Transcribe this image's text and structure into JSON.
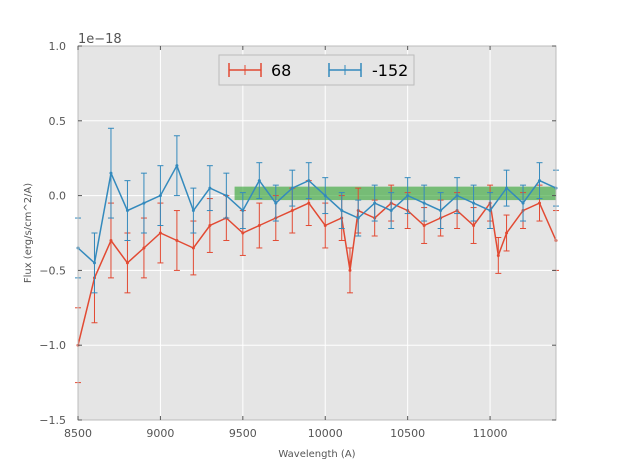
{
  "chart_data": {
    "type": "line",
    "xlabel": "Wavelength (A)",
    "ylabel": "Flux (erg/s/cm^2/A)",
    "offset_text": "1e−18",
    "xlim": [
      8500,
      11400
    ],
    "ylim": [
      -1.5,
      1.0
    ],
    "xticks": [
      8500,
      9000,
      9500,
      10000,
      10500,
      11000
    ],
    "yticks": [
      -1.5,
      -1.0,
      -0.5,
      0.0,
      0.5,
      1.0
    ],
    "ytick_labels": [
      "−1.5",
      "−1.0",
      "−0.5",
      "0.0",
      "0.5",
      "1.0"
    ],
    "grid": true,
    "legend_position": "top-center",
    "band": {
      "x_start": 9450,
      "x_end": 11400,
      "y_low": -0.03,
      "y_high": 0.06,
      "color": "#2ca02c"
    },
    "series": [
      {
        "name": "68",
        "color": "#e24a33",
        "x": [
          8500,
          8600,
          8700,
          8800,
          8900,
          9000,
          9100,
          9200,
          9300,
          9400,
          9500,
          9600,
          9700,
          9800,
          9900,
          10000,
          10100,
          10150,
          10200,
          10300,
          10400,
          10500,
          10600,
          10700,
          10800,
          10900,
          11000,
          11050,
          11100,
          11200,
          11300,
          11400
        ],
        "y": [
          -1.0,
          -0.55,
          -0.3,
          -0.45,
          -0.35,
          -0.25,
          -0.3,
          -0.35,
          -0.2,
          -0.15,
          -0.25,
          -0.2,
          -0.15,
          -0.1,
          -0.05,
          -0.2,
          -0.15,
          -0.5,
          -0.1,
          -0.15,
          -0.05,
          -0.1,
          -0.2,
          -0.15,
          -0.1,
          -0.2,
          -0.05,
          -0.4,
          -0.25,
          -0.1,
          -0.05,
          -0.3
        ],
        "err": [
          0.25,
          0.3,
          0.25,
          0.2,
          0.2,
          0.2,
          0.2,
          0.18,
          0.18,
          0.15,
          0.15,
          0.15,
          0.15,
          0.15,
          0.15,
          0.15,
          0.15,
          0.15,
          0.15,
          0.12,
          0.12,
          0.12,
          0.12,
          0.12,
          0.12,
          0.12,
          0.12,
          0.12,
          0.12,
          0.12,
          0.12,
          0.2
        ]
      },
      {
        "name": "-152",
        "color": "#348abd",
        "x": [
          8500,
          8600,
          8700,
          8800,
          8900,
          9000,
          9100,
          9200,
          9300,
          9400,
          9500,
          9600,
          9700,
          9800,
          9900,
          10000,
          10100,
          10200,
          10300,
          10400,
          10500,
          10600,
          10700,
          10800,
          10900,
          11000,
          11100,
          11200,
          11300,
          11400
        ],
        "y": [
          -0.35,
          -0.45,
          0.15,
          -0.1,
          -0.05,
          0.0,
          0.2,
          -0.1,
          0.05,
          0.0,
          -0.1,
          0.1,
          -0.05,
          0.05,
          0.1,
          0.0,
          -0.1,
          -0.15,
          -0.05,
          -0.1,
          0.0,
          -0.05,
          -0.1,
          0.0,
          -0.05,
          -0.1,
          0.05,
          -0.05,
          0.1,
          0.05
        ],
        "err": [
          0.2,
          0.2,
          0.3,
          0.2,
          0.2,
          0.2,
          0.2,
          0.15,
          0.15,
          0.15,
          0.12,
          0.12,
          0.12,
          0.12,
          0.12,
          0.12,
          0.12,
          0.12,
          0.12,
          0.12,
          0.12,
          0.12,
          0.12,
          0.12,
          0.12,
          0.12,
          0.12,
          0.12,
          0.12,
          0.12
        ]
      }
    ]
  },
  "legend": {
    "entries": [
      "68",
      "-152"
    ]
  }
}
